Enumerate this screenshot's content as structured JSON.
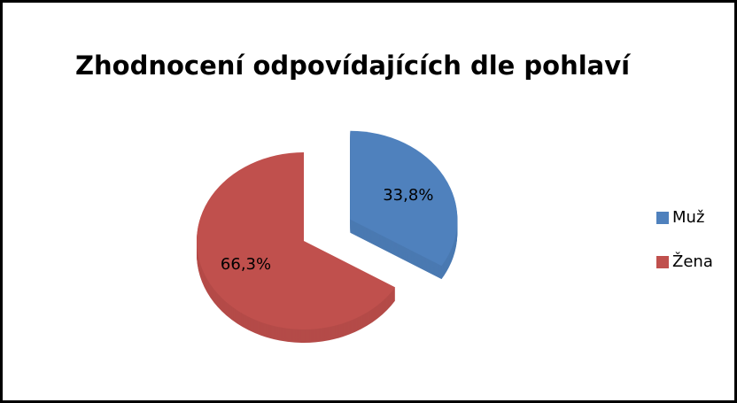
{
  "chart_data": {
    "type": "pie",
    "title": "Zhodnocení odpovídajících dle pohlaví",
    "categories": [
      "Muž",
      "Žena"
    ],
    "values": [
      33.8,
      66.3
    ],
    "value_labels": [
      "33,8%",
      "66,3%"
    ],
    "colors": [
      "#4f81bd",
      "#c0504d"
    ],
    "legend": "right"
  }
}
